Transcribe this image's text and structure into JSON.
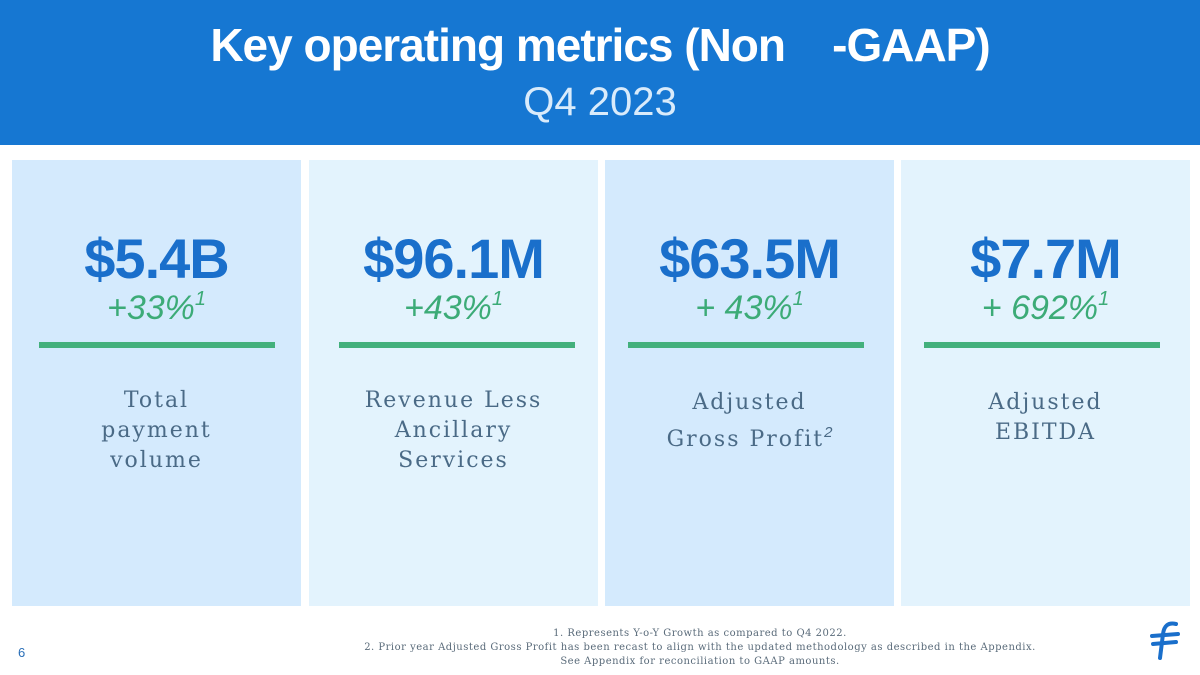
{
  "header": {
    "title": "Key operating metrics (Non    -GAAP)",
    "subtitle": "Q4 2023"
  },
  "cards": [
    {
      "value": "$5.4B",
      "growth": "+33%",
      "growth_sup": "1",
      "label_lines": [
        "Total",
        "payment",
        "volume"
      ],
      "label_sup": "",
      "background": "#d4eafd"
    },
    {
      "value": "$96.1M",
      "growth": "+43%",
      "growth_sup": "1",
      "label_lines": [
        "Revenue Less",
        "Ancillary",
        "Services"
      ],
      "label_sup": "",
      "background": "#e3f3fd"
    },
    {
      "value": "$63.5M",
      "growth": "+ 43%",
      "growth_sup": "1",
      "label_lines": [
        "Adjusted",
        "Gross Profit"
      ],
      "label_sup": "2",
      "background": "#d4eafd"
    },
    {
      "value": "$7.7M",
      "growth": "+ 692%",
      "growth_sup": "1",
      "label_lines": [
        "Adjusted",
        "EBITDA"
      ],
      "label_sup": "",
      "background": "#e3f3fd"
    }
  ],
  "footnotes": [
    "1. Represents Y-o-Y Growth as compared to Q4 2022.",
    "2. Prior year Adjusted Gross Profit has been recast to align with the updated methodology as described in the Appendix.",
    "See Appendix for reconciliation to GAAP amounts."
  ],
  "page_number": "6",
  "colors": {
    "header_blue": "#1677d2",
    "value_blue": "#1a6fcb",
    "growth_green": "#3cab77",
    "rule_green": "#43b07c"
  },
  "logo_icon": "flywire-logo-icon"
}
